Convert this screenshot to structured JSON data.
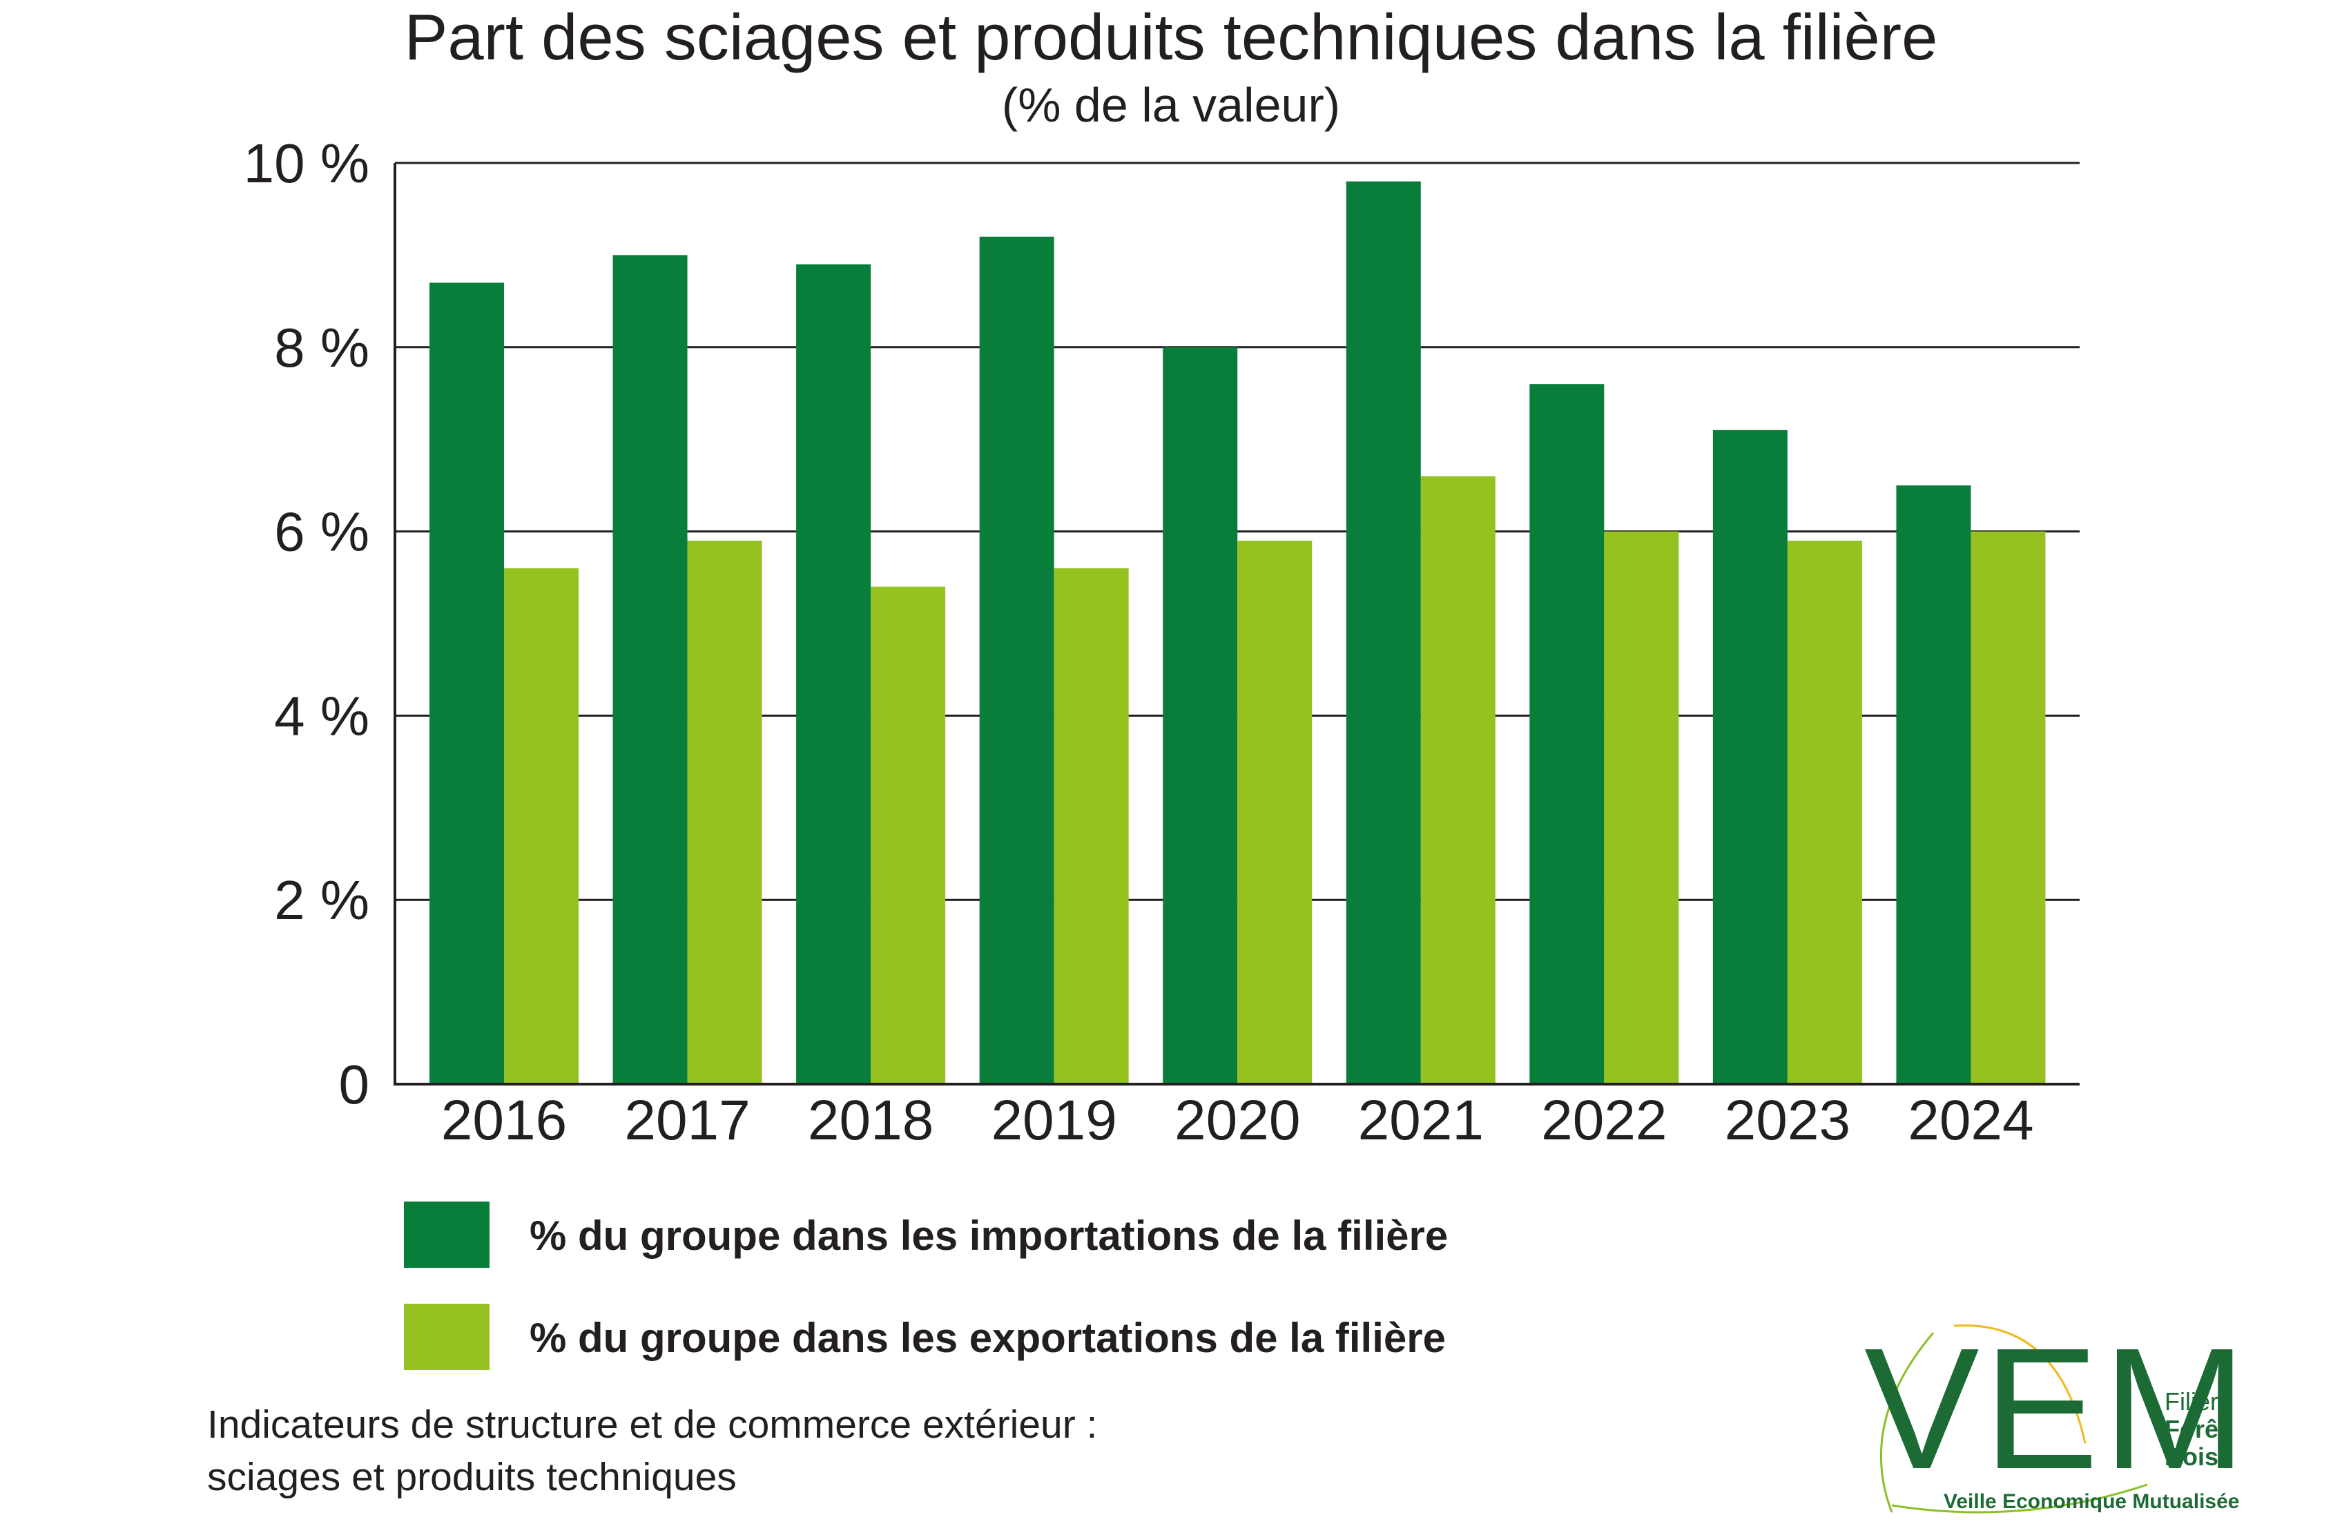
{
  "title": "Part des sciages et produits techniques dans la filière",
  "subtitle": "(% de la valeur)",
  "chart_data": {
    "type": "bar",
    "categories": [
      "2016",
      "2017",
      "2018",
      "2019",
      "2020",
      "2021",
      "2022",
      "2023",
      "2024"
    ],
    "series": [
      {
        "name": "% du groupe dans les importations de la filière",
        "color": "#087e3a",
        "values": [
          8.7,
          9.0,
          8.9,
          9.2,
          8.0,
          9.8,
          7.6,
          7.1,
          6.5
        ]
      },
      {
        "name": "% du groupe dans les exportations de la filière",
        "color": "#95c121",
        "values": [
          5.6,
          5.9,
          5.4,
          5.6,
          5.9,
          6.6,
          6.0,
          5.9,
          6.0
        ]
      }
    ],
    "ylim": [
      0,
      10
    ],
    "yticks": [
      0,
      2,
      4,
      6,
      8,
      10
    ],
    "ytick_labels": [
      "0",
      "2 %",
      "4 %",
      "6 %",
      "8 %",
      "10 %"
    ],
    "xlabel": "",
    "ylabel": "",
    "grid": true,
    "legend_position": "bottom"
  },
  "footer": {
    "line1": "Indicateurs de structure et de commerce extérieur :",
    "line2": "sciages et produits techniques"
  },
  "logo": {
    "letters": "VEM",
    "side_line1": "Filière",
    "side_line2": "Forêt",
    "side_line3": "Bois",
    "tagline": "Veille Economique Mutualisée"
  }
}
